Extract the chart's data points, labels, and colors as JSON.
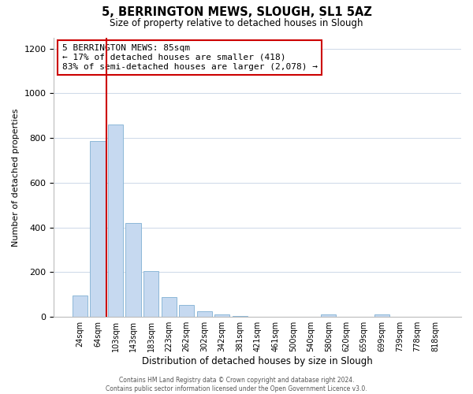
{
  "title": "5, BERRINGTON MEWS, SLOUGH, SL1 5AZ",
  "subtitle": "Size of property relative to detached houses in Slough",
  "xlabel": "Distribution of detached houses by size in Slough",
  "ylabel": "Number of detached properties",
  "bar_labels": [
    "24sqm",
    "64sqm",
    "103sqm",
    "143sqm",
    "183sqm",
    "223sqm",
    "262sqm",
    "302sqm",
    "342sqm",
    "381sqm",
    "421sqm",
    "461sqm",
    "500sqm",
    "540sqm",
    "580sqm",
    "620sqm",
    "659sqm",
    "699sqm",
    "739sqm",
    "778sqm",
    "818sqm"
  ],
  "bar_values": [
    95,
    785,
    860,
    420,
    205,
    90,
    55,
    25,
    10,
    5,
    2,
    1,
    0,
    0,
    12,
    0,
    0,
    12,
    0,
    0,
    0
  ],
  "bar_color": "#c6d9f0",
  "bar_edge_color": "#8db8d8",
  "vline_x_idx": 1.5,
  "vline_color": "#cc0000",
  "ylim": [
    0,
    1250
  ],
  "yticks": [
    0,
    200,
    400,
    600,
    800,
    1000,
    1200
  ],
  "annotation_title": "5 BERRINGTON MEWS: 85sqm",
  "annotation_line1": "← 17% of detached houses are smaller (418)",
  "annotation_line2": "83% of semi-detached houses are larger (2,078) →",
  "footer_line1": "Contains HM Land Registry data © Crown copyright and database right 2024.",
  "footer_line2": "Contains public sector information licensed under the Open Government Licence v3.0.",
  "background_color": "#ffffff",
  "grid_color": "#cdd8e8"
}
